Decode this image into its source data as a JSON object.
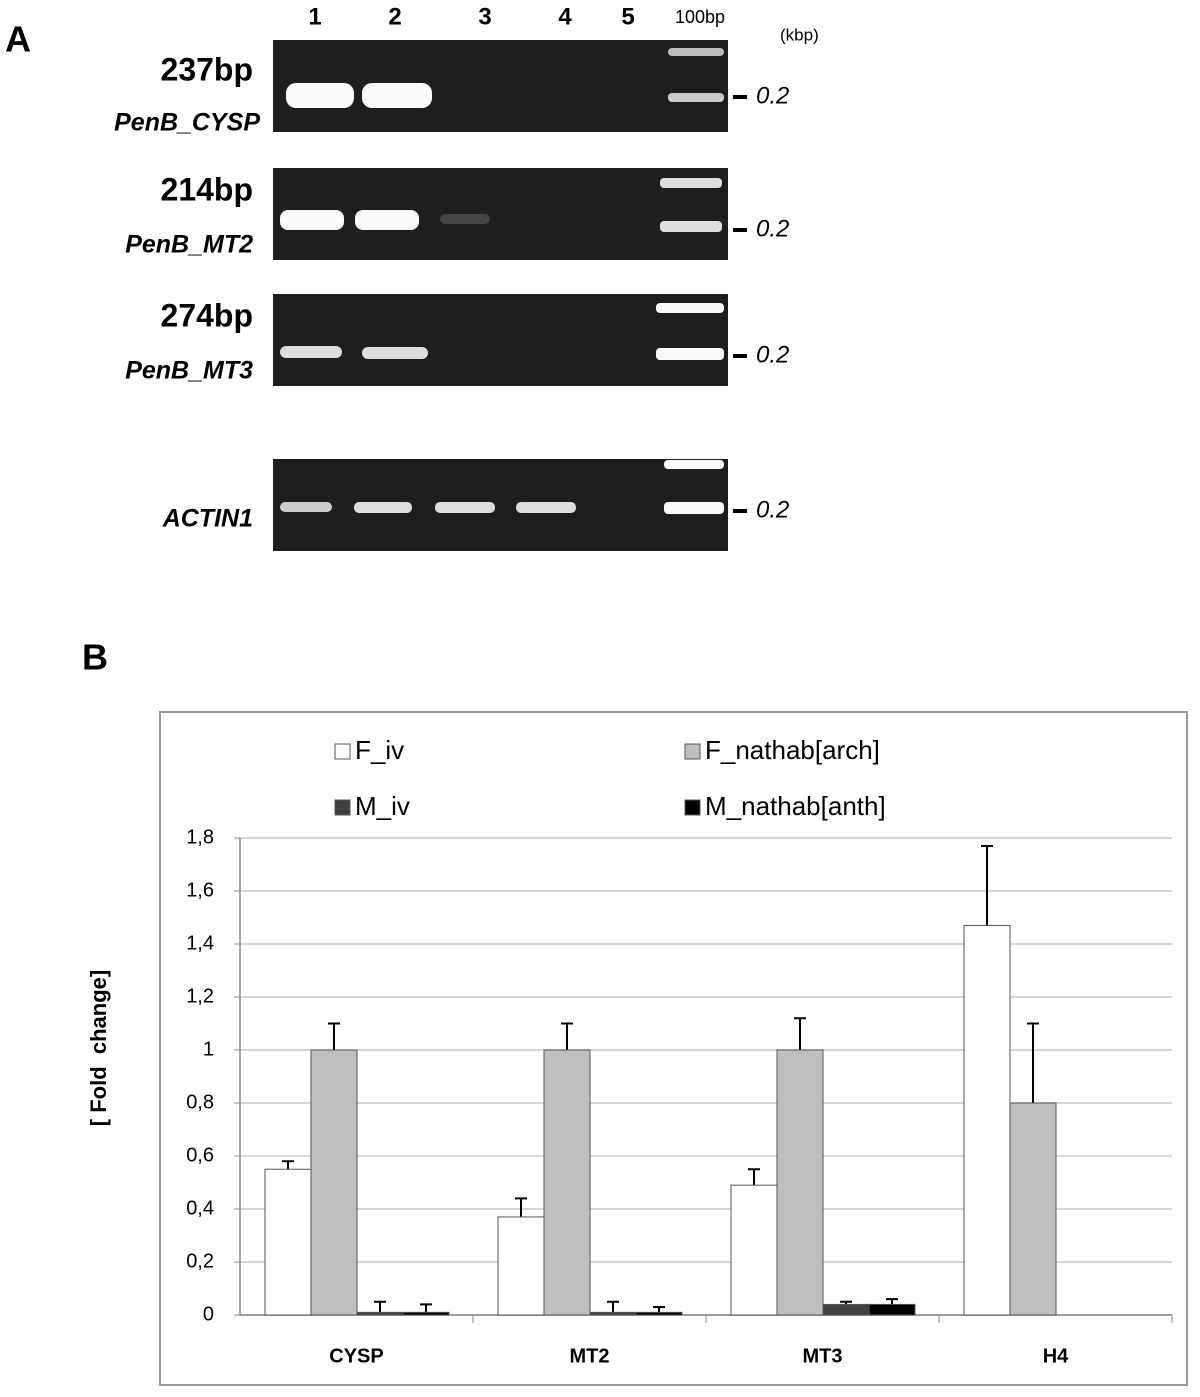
{
  "panel_a": {
    "label": "A",
    "lanes": [
      "1",
      "2",
      "3",
      "4",
      "5",
      "100bp"
    ],
    "unit": "(kbp)",
    "gels": [
      {
        "size": "237bp",
        "gene": "PenB_CYSP",
        "marker": "0.2"
      },
      {
        "size": "214bp",
        "gene": "PenB_MT2",
        "marker": "0.2"
      },
      {
        "size": "274bp",
        "gene": "PenB_MT3",
        "marker": "0.2"
      },
      {
        "gene": "ACTIN1",
        "marker": "0.2"
      }
    ]
  },
  "chart_data": {
    "type": "bar",
    "panel_label": "B",
    "y_label": "[ Fold  change]",
    "categories": [
      "CYSP",
      "MT2",
      "MT3",
      "H4"
    ],
    "series": [
      {
        "name": "F_iv",
        "color": "#ffffff",
        "values": [
          0.55,
          0.37,
          0.49,
          1.47
        ],
        "errors": [
          0.03,
          0.07,
          0.06,
          0.3
        ]
      },
      {
        "name": "F_nathab[arch]",
        "color": "#bfbfbf",
        "values": [
          1.0,
          1.0,
          1.0,
          0.8
        ],
        "errors": [
          0.1,
          0.1,
          0.12,
          0.3
        ]
      },
      {
        "name": "M_iv",
        "color": "#404040",
        "values": [
          0.01,
          0.01,
          0.04,
          null
        ],
        "errors": [
          0.04,
          0.04,
          0.01,
          null
        ]
      },
      {
        "name": "M_nathab[anth]",
        "color": "#000000",
        "values": [
          0.01,
          0.01,
          0.04,
          null
        ],
        "errors": [
          0.03,
          0.02,
          0.02,
          null
        ]
      }
    ],
    "ylim": [
      0,
      1.8
    ],
    "yticks": [
      0,
      {
        "value": 0.2,
        "label": "0,2"
      },
      {
        "value": 0.4,
        "label": "0,4"
      },
      {
        "value": 0.6,
        "label": "0,6"
      },
      {
        "value": 0.8,
        "label": "0,8"
      },
      1,
      {
        "value": 1.2,
        "label": "1,2"
      },
      {
        "value": 1.4,
        "label": "1,4"
      },
      {
        "value": 1.6,
        "label": "1,6"
      },
      {
        "value": 1.8,
        "label": "1,8"
      }
    ],
    "grid": true,
    "legend": "top"
  }
}
